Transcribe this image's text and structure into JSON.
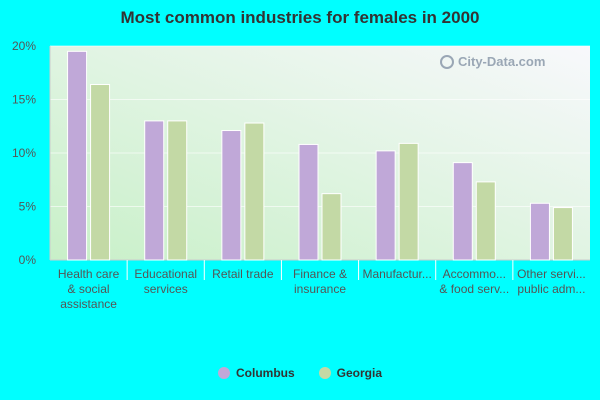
{
  "chart_data": {
    "type": "bar",
    "title": "Most common industries for females in 2000",
    "categories": [
      [
        "Health care",
        "& social",
        "assistance"
      ],
      [
        "Educational",
        "services"
      ],
      [
        "Retail trade"
      ],
      [
        "Finance &",
        "insurance"
      ],
      [
        "Manufactur..."
      ],
      [
        "Accommo...",
        "& food serv..."
      ],
      [
        "Other servi...",
        "public adm..."
      ]
    ],
    "series": [
      {
        "name": "Columbus",
        "color": "#c0a8d8",
        "values": [
          19.5,
          13.0,
          12.1,
          10.8,
          10.2,
          9.1,
          5.3
        ]
      },
      {
        "name": "Georgia",
        "color": "#c3d9a5",
        "values": [
          16.4,
          13.0,
          12.8,
          6.2,
          10.9,
          7.3,
          4.9
        ]
      }
    ],
    "yticks": [
      "0%",
      "5%",
      "10%",
      "15%",
      "20%"
    ],
    "ylim": [
      0,
      20
    ],
    "legend_position": "bottom",
    "grid": true
  },
  "watermark": {
    "text": "City-Data.com",
    "icon": "search-icon"
  },
  "colors": {
    "background": "#00ffff",
    "plot_bg_top": "#f5f5fb",
    "plot_bg_bottom": "#ccf0cc"
  }
}
